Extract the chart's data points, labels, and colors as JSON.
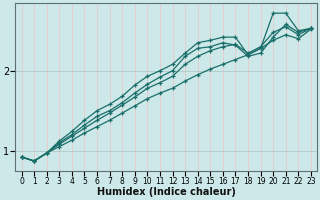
{
  "xlabel": "Humidex (Indice chaleur)",
  "bg_color": "#cce8e8",
  "line_color": "#1a6e6a",
  "grid_color_v": "#e8c8c8",
  "grid_color_h": "#b0c8c8",
  "xlim": [
    -0.5,
    23.5
  ],
  "ylim": [
    0.75,
    2.85
  ],
  "yticks": [
    1,
    2
  ],
  "xticks": [
    0,
    1,
    2,
    3,
    4,
    5,
    6,
    7,
    8,
    9,
    10,
    11,
    12,
    13,
    14,
    15,
    16,
    17,
    18,
    19,
    20,
    21,
    22,
    23
  ],
  "lines": [
    {
      "x": [
        0,
        1,
        2,
        3,
        4,
        5,
        6,
        7,
        8,
        9,
        10,
        11,
        12,
        13,
        14,
        15,
        16,
        17,
        18,
        19,
        20,
        21,
        22,
        23
      ],
      "y": [
        0.92,
        0.87,
        0.97,
        1.05,
        1.13,
        1.22,
        1.3,
        1.38,
        1.47,
        1.56,
        1.65,
        1.72,
        1.78,
        1.87,
        1.95,
        2.02,
        2.08,
        2.14,
        2.2,
        2.28,
        2.38,
        2.45,
        2.4,
        2.52
      ]
    },
    {
      "x": [
        0,
        1,
        2,
        3,
        4,
        5,
        6,
        7,
        8,
        9,
        10,
        11,
        12,
        13,
        14,
        15,
        16,
        17,
        18,
        19,
        20,
        21,
        22,
        23
      ],
      "y": [
        0.92,
        0.87,
        0.97,
        1.08,
        1.18,
        1.28,
        1.38,
        1.47,
        1.57,
        1.67,
        1.78,
        1.85,
        1.93,
        2.08,
        2.18,
        2.25,
        2.3,
        2.33,
        2.22,
        2.3,
        2.48,
        2.55,
        2.45,
        2.53
      ]
    },
    {
      "x": [
        0,
        1,
        2,
        3,
        4,
        5,
        6,
        7,
        8,
        9,
        10,
        11,
        12,
        13,
        14,
        15,
        16,
        17,
        18,
        19,
        20,
        21,
        22,
        23
      ],
      "y": [
        0.92,
        0.87,
        0.97,
        1.1,
        1.2,
        1.32,
        1.43,
        1.5,
        1.6,
        1.72,
        1.83,
        1.92,
        2.0,
        2.18,
        2.28,
        2.3,
        2.35,
        2.32,
        2.18,
        2.22,
        2.42,
        2.58,
        2.48,
        2.53
      ]
    },
    {
      "x": [
        0,
        1,
        2,
        3,
        4,
        5,
        6,
        7,
        8,
        9,
        10,
        11,
        12,
        13,
        14,
        15,
        16,
        17,
        18,
        19,
        20,
        21,
        22,
        23
      ],
      "y": [
        0.92,
        0.87,
        0.97,
        1.12,
        1.24,
        1.38,
        1.5,
        1.58,
        1.68,
        1.82,
        1.93,
        2.0,
        2.08,
        2.22,
        2.35,
        2.38,
        2.42,
        2.42,
        2.2,
        2.28,
        2.72,
        2.72,
        2.5,
        2.53
      ]
    }
  ]
}
